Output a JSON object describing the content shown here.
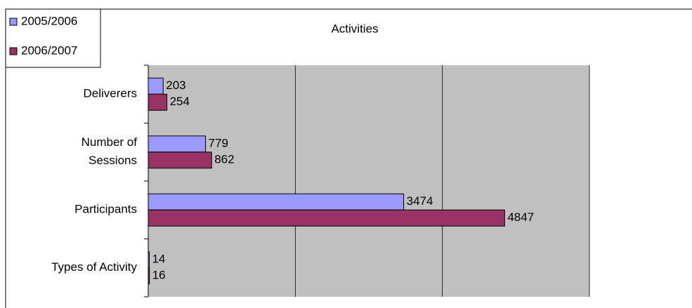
{
  "chart_data": {
    "type": "bar",
    "orientation": "horizontal",
    "title": "Activities",
    "categories": [
      "Deliverers",
      "Number of Sessions",
      "Participants",
      "Types of Activity"
    ],
    "series": [
      {
        "name": "2005/2006",
        "color": "#9999ff",
        "values": [
          203,
          779,
          3474,
          14
        ]
      },
      {
        "name": "2006/2007",
        "color": "#993366",
        "values": [
          254,
          862,
          4847,
          16
        ]
      }
    ],
    "xlim": [
      0,
      6000
    ],
    "xticks": [
      0,
      2000,
      4000,
      6000
    ],
    "grid": true,
    "legend": "top-left"
  }
}
